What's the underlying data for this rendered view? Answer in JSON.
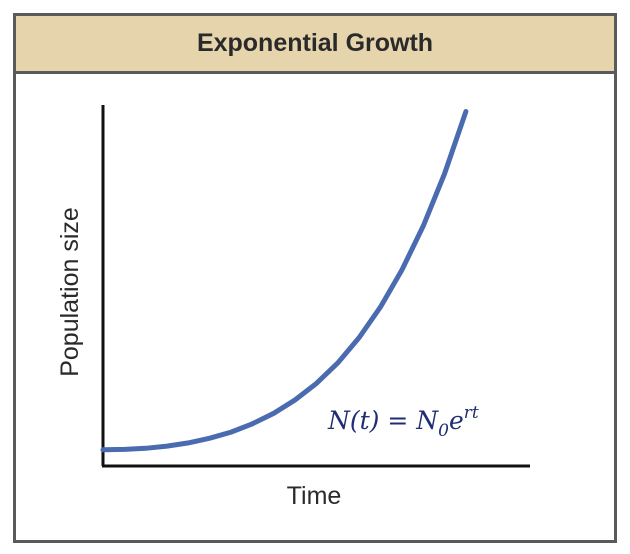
{
  "chart_data": {
    "type": "line",
    "title": "Exponential Growth",
    "xlabel": "Time",
    "ylabel": "Population size",
    "annotation": {
      "lhs": "N(t) = N",
      "subscript": "0",
      "base": "e",
      "superscript": "rt"
    },
    "grid": false,
    "legend": "none",
    "series_color": "#4a6bb0",
    "axis_color": "#111111",
    "xlim": [
      0,
      10
    ],
    "ylim": [
      0,
      100
    ],
    "series": [
      {
        "x": [
          0,
          0.5,
          1,
          1.5,
          2,
          2.5,
          3,
          3.5,
          4,
          4.5,
          5,
          5.5,
          6,
          6.5,
          7,
          7.5,
          8,
          8.5,
          9,
          9.5,
          10
        ],
        "values": [
          4.5,
          4.6,
          4.9,
          5.5,
          6.4,
          7.7,
          9.4,
          11.7,
          14.6,
          18.3,
          22.9,
          28.6,
          35.6,
          44.1,
          54.3,
          66.5,
          81.0,
          98.2,
          null,
          null,
          null
        ]
      }
    ]
  }
}
